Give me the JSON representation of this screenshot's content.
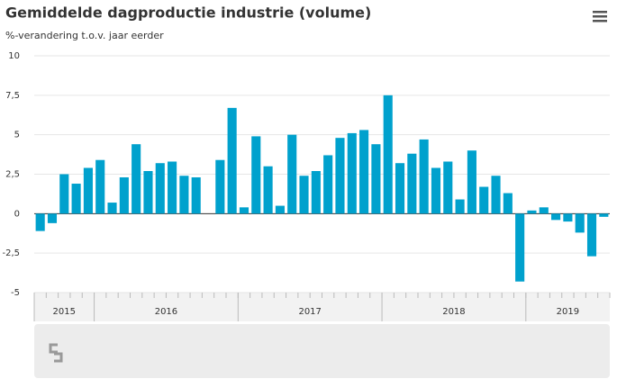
{
  "chart_data": {
    "type": "bar",
    "title": "Gemiddelde dagproductie industrie (volume)",
    "subtitle": "%-verandering t.o.v. jaar eerder",
    "categories": [
      null,
      null,
      null,
      null,
      null,
      null,
      null,
      null,
      null,
      null,
      null,
      null,
      null,
      null,
      null,
      null,
      null,
      null,
      null,
      null,
      null,
      null,
      null,
      null,
      null,
      null,
      null,
      null,
      null,
      null,
      null,
      null,
      null,
      null,
      null,
      null,
      null,
      null,
      null,
      null,
      null,
      null,
      null,
      null,
      null,
      null,
      null,
      null
    ],
    "year_groups": [
      {
        "label": "2015",
        "count": 5
      },
      {
        "label": "2016",
        "count": 12
      },
      {
        "label": "2017",
        "count": 12
      },
      {
        "label": "2018",
        "count": 12
      },
      {
        "label": "2019",
        "count": 7
      }
    ],
    "values": [
      -1.1,
      -0.6,
      2.5,
      1.9,
      2.9,
      3.4,
      0.7,
      2.3,
      4.4,
      2.7,
      3.2,
      3.3,
      2.4,
      2.3,
      null,
      3.4,
      6.7,
      0.4,
      4.9,
      3.0,
      0.5,
      5.0,
      2.4,
      2.7,
      3.7,
      4.8,
      5.1,
      5.3,
      4.4,
      7.5,
      3.2,
      3.8,
      4.7,
      2.9,
      3.3,
      0.9,
      4.0,
      1.7,
      2.4,
      1.3,
      -4.3,
      0.2,
      0.4,
      -0.4,
      -0.5,
      -1.2,
      -2.7,
      -0.2
    ],
    "color": "#00a1cd",
    "ylim": [
      -5,
      10
    ],
    "yticks": [
      -5,
      {
        "value": -2.5,
        "label": "-2,5"
      },
      0,
      {
        "value": 2.5,
        "label": "2,5"
      },
      5,
      {
        "value": 7.5,
        "label": "7,5"
      },
      10
    ],
    "grid": true
  }
}
